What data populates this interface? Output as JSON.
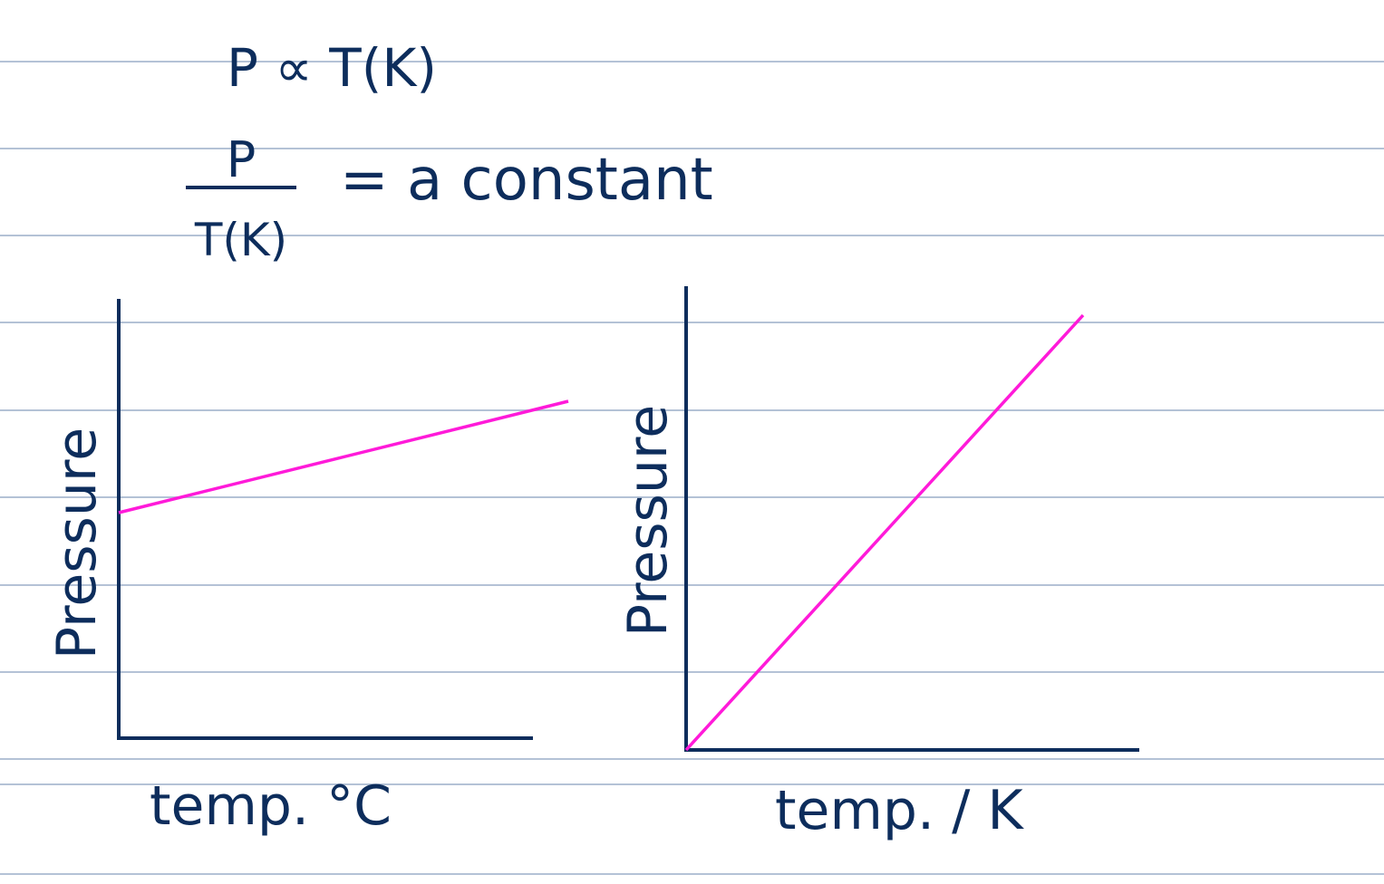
{
  "equations": {
    "proportionality": "P ∝ T(K)",
    "numerator": "P",
    "denominator": "T(K)",
    "rhs": "= a constant"
  },
  "graphs": [
    {
      "y_label": "Pressure",
      "x_label": "temp. °C"
    },
    {
      "y_label": "Pressure",
      "x_label": "temp. / K"
    }
  ]
}
